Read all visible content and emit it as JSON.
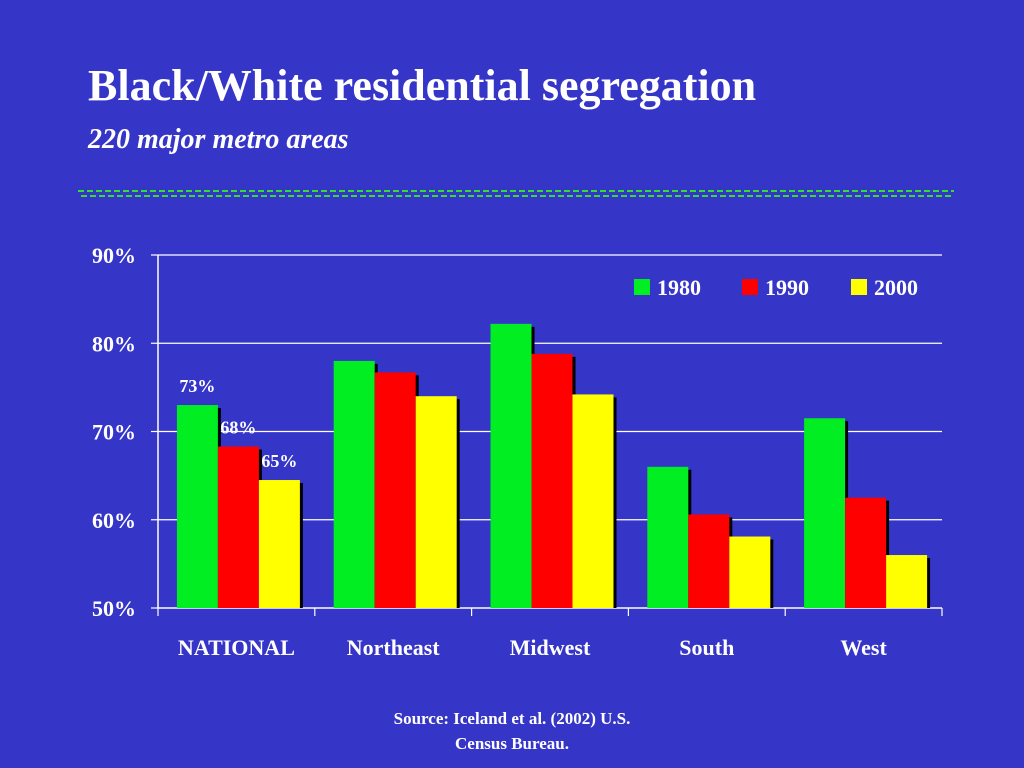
{
  "slide": {
    "source_line1": "Source: Iceland et al. (2002) U.S.",
    "source_line2": "Census Bureau."
  },
  "colors": {
    "background": "#3535c8",
    "1980": "#00ee22",
    "1990": "#ff0000",
    "2000": "#ffff00",
    "divider": "#33dd33"
  },
  "chart_data": {
    "type": "bar",
    "title": "Black/White residential segregation",
    "subtitle": "220 major metro areas",
    "categories": [
      "NATIONAL",
      "Northeast",
      "Midwest",
      "South",
      "West"
    ],
    "series": [
      {
        "name": "1980",
        "values": [
          73,
          78,
          82.2,
          66,
          71.5
        ]
      },
      {
        "name": "1990",
        "values": [
          68.3,
          76.7,
          78.8,
          60.6,
          62.5
        ]
      },
      {
        "name": "2000",
        "values": [
          64.5,
          74,
          74.2,
          58.1,
          56
        ]
      }
    ],
    "data_labels": [
      {
        "series": "1980",
        "category": "NATIONAL",
        "text": "73%"
      },
      {
        "series": "1990",
        "category": "NATIONAL",
        "text": "68%"
      },
      {
        "series": "2000",
        "category": "NATIONAL",
        "text": "65%"
      }
    ],
    "ylim": [
      50,
      90
    ],
    "yticks": [
      {
        "value": 50,
        "label": "50%"
      },
      {
        "value": 60,
        "label": "60%"
      },
      {
        "value": 70,
        "label": "70%"
      },
      {
        "value": 80,
        "label": "80%"
      },
      {
        "value": 90,
        "label": "90%"
      }
    ],
    "xlabel": "",
    "ylabel": "",
    "grid": true,
    "legend_position": "top-right"
  }
}
